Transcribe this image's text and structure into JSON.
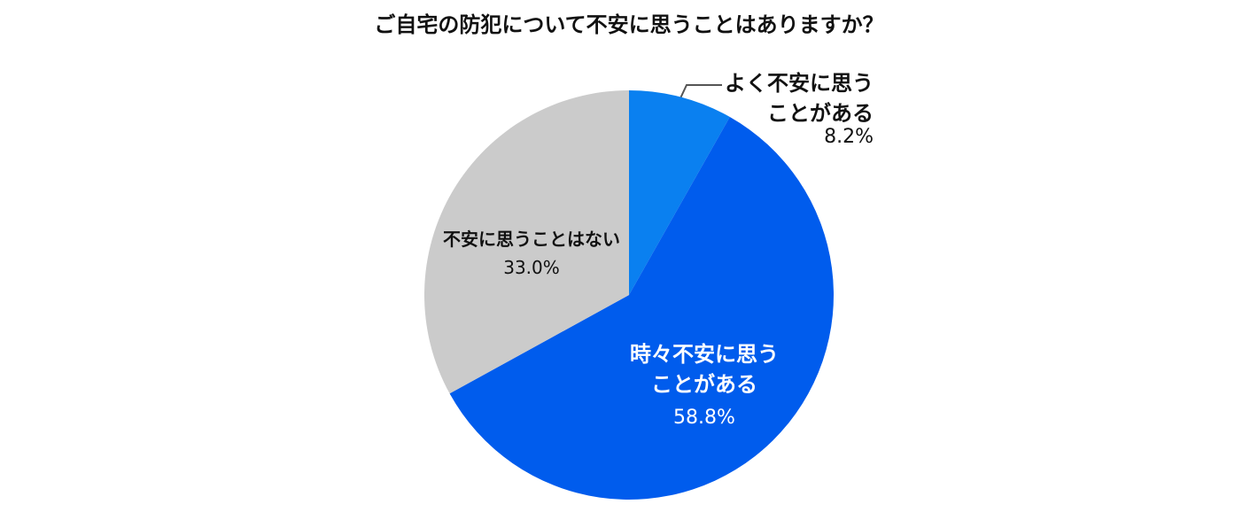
{
  "chart_data": {
    "type": "pie",
    "title": "ご自宅の防犯について不安に思うことはありますか？",
    "categories": [
      "よく不安に思うことがある",
      "時々不安に思うことがある",
      "不安に思うことはない"
    ],
    "values": [
      8.2,
      58.8,
      33.0
    ],
    "value_labels": [
      "8.2%",
      "58.8%",
      "33.0%"
    ],
    "colors": [
      "#0a80f0",
      "#005ced",
      "#cbcbcb"
    ]
  }
}
